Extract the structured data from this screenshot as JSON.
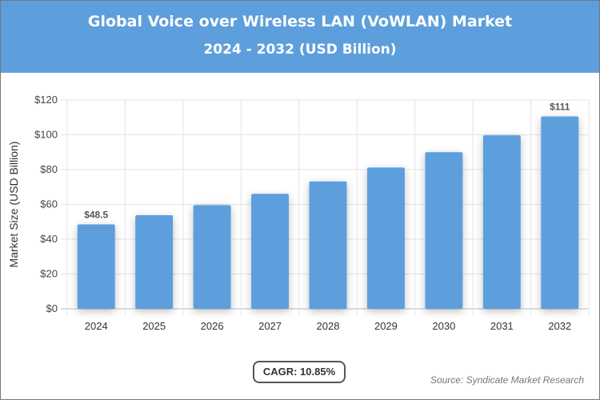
{
  "chart_data": {
    "type": "bar",
    "title": "Global Voice over Wireless LAN (VoWLAN) Market",
    "subtitle": "2024 - 2032 (USD Billion)",
    "ylabel": "Market Size (USD Billion)",
    "xlabel": "",
    "categories": [
      "2024",
      "2025",
      "2026",
      "2027",
      "2028",
      "2029",
      "2030",
      "2031",
      "2032"
    ],
    "values": [
      48.5,
      53.8,
      59.6,
      66.1,
      73.2,
      81.2,
      90.0,
      99.7,
      110.6
    ],
    "data_labels": {
      "2024": "$48.5",
      "2032": "$111"
    },
    "ylim": [
      0,
      120
    ],
    "yticks": [
      "$0",
      "$20",
      "$40",
      "$60",
      "$80",
      "$100",
      "$120"
    ],
    "grid": true,
    "bar_color": "#5d9fdc"
  },
  "cagr_label": "CAGR: 10.85%",
  "source": "Source: Syndicate Market Research"
}
